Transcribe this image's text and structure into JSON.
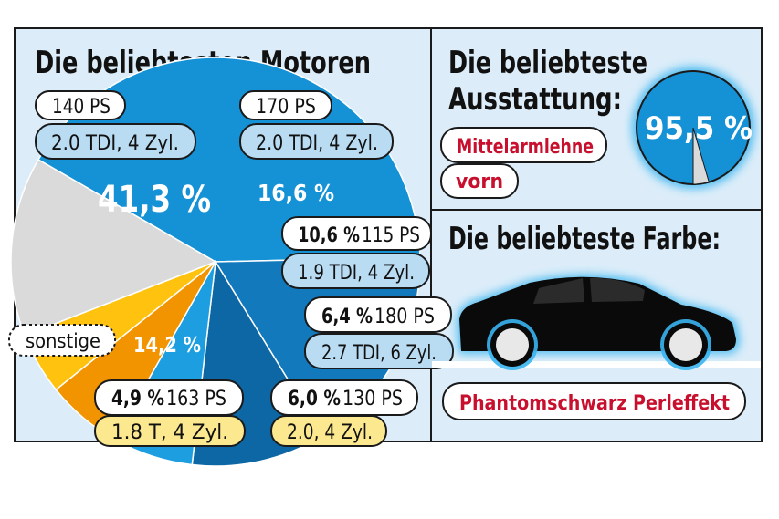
{
  "colors": {
    "panel_bg": "#dcedf9",
    "border": "#1a1a1a",
    "pill_white": "#ffffff",
    "pill_blue": "#b9dcf3",
    "pill_yellow": "#fbe88f",
    "red_text": "#c8102e",
    "glow": "#39b4ef"
  },
  "motors": {
    "title": "Die beliebtesten Motoren"
  },
  "equipment": {
    "title_line1": "Die beliebteste",
    "title_line2": "Ausstattung:",
    "value_label": "95,5 %",
    "share": 95.5,
    "item_line1": "Mittelarmlehne",
    "item_line2": "vorn"
  },
  "color_panel": {
    "title": "Die beliebteste Farbe:",
    "value": "Phantomschwarz Perleffekt",
    "icon": "car-silhouette-icon"
  },
  "chart_data": {
    "type": "pie",
    "title": "Die beliebtesten Motoren",
    "slices": [
      {
        "label": "140 PS · 2.0 TDI, 4 Zyl.",
        "value": 41.3,
        "pct_label": "41,3 %",
        "ps": "140 PS",
        "engine": "2.0 TDI, 4 Zyl.",
        "color": "#1591d6"
      },
      {
        "label": "170 PS · 2.0 TDI, 4 Zyl.",
        "value": 16.6,
        "pct_label": "16,6 %",
        "ps": "170 PS",
        "engine": "2.0 TDI, 4 Zyl.",
        "color": "#1379bd"
      },
      {
        "label": "115 PS · 1.9 TDI, 4 Zyl.",
        "value": 10.6,
        "pct_label": "10,6 %",
        "ps": "115 PS",
        "engine": "1.9 TDI, 4 Zyl.",
        "color": "#0d67a5"
      },
      {
        "label": "180 PS · 2.7 TDI, 6 Zyl.",
        "value": 6.4,
        "pct_label": "6,4 %",
        "ps": "180 PS",
        "engine": "2.7 TDI, 6 Zyl.",
        "color": "#1d9ee0"
      },
      {
        "label": "130 PS · 2.0, 4 Zyl.",
        "value": 6.0,
        "pct_label": "6,0 %",
        "ps": "130 PS",
        "engine": "2.0, 4 Zyl.",
        "color": "#f29400"
      },
      {
        "label": "163 PS · 1.8 T, 4 Zyl.",
        "value": 4.9,
        "pct_label": "4,9 %",
        "ps": "163 PS",
        "engine": "1.8 T, 4 Zyl.",
        "color": "#ffc20e"
      },
      {
        "label": "sonstige",
        "value": 14.2,
        "pct_label": "14,2 %",
        "ps": "",
        "engine": "",
        "color": "#dadada"
      }
    ]
  }
}
